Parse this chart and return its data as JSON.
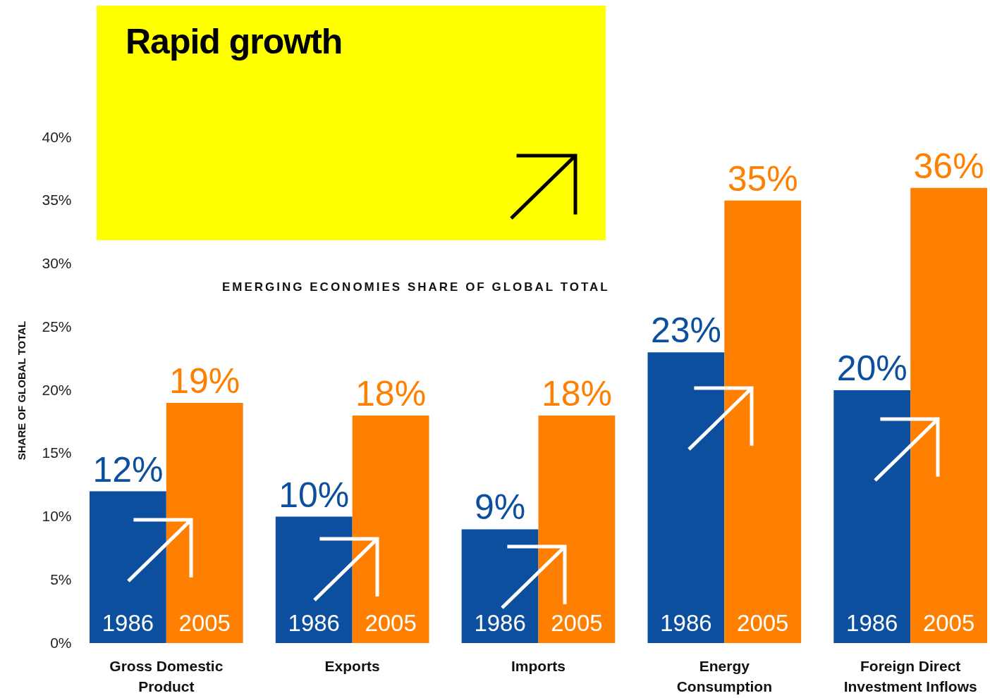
{
  "chart_data": {
    "type": "bar",
    "title": "Rapid growth",
    "subtitle": "EMERGING ECONOMIES SHARE OF GLOBAL TOTAL",
    "ylabel": "SHARE OF GLOBAL TOTAL",
    "categories": [
      "Gross Domestic Product",
      "Exports",
      "Imports",
      "Energy Consumption",
      "Foreign Direct Investment Inflows"
    ],
    "series": [
      {
        "name": "1986",
        "color": "#0b4f9e",
        "values": [
          12,
          10,
          9,
          23,
          20
        ],
        "value_labels": [
          "12%",
          "10%",
          "9%",
          "23%",
          "20%"
        ]
      },
      {
        "name": "2005",
        "color": "#ff7f00",
        "values": [
          19,
          18,
          18,
          35,
          36
        ],
        "value_labels": [
          "19%",
          "18%",
          "18%",
          "35%",
          "36%"
        ]
      }
    ],
    "ylim": [
      0,
      40
    ],
    "yticks": [
      {
        "value": 0,
        "label": "0%"
      },
      {
        "value": 5,
        "label": "5%"
      },
      {
        "value": 10,
        "label": "10%"
      },
      {
        "value": 15,
        "label": "15%"
      },
      {
        "value": 20,
        "label": "20%"
      },
      {
        "value": 25,
        "label": "25%"
      },
      {
        "value": 30,
        "label": "30%"
      },
      {
        "value": 35,
        "label": "35%"
      },
      {
        "value": 40,
        "label": "40%"
      }
    ],
    "grid": false
  }
}
